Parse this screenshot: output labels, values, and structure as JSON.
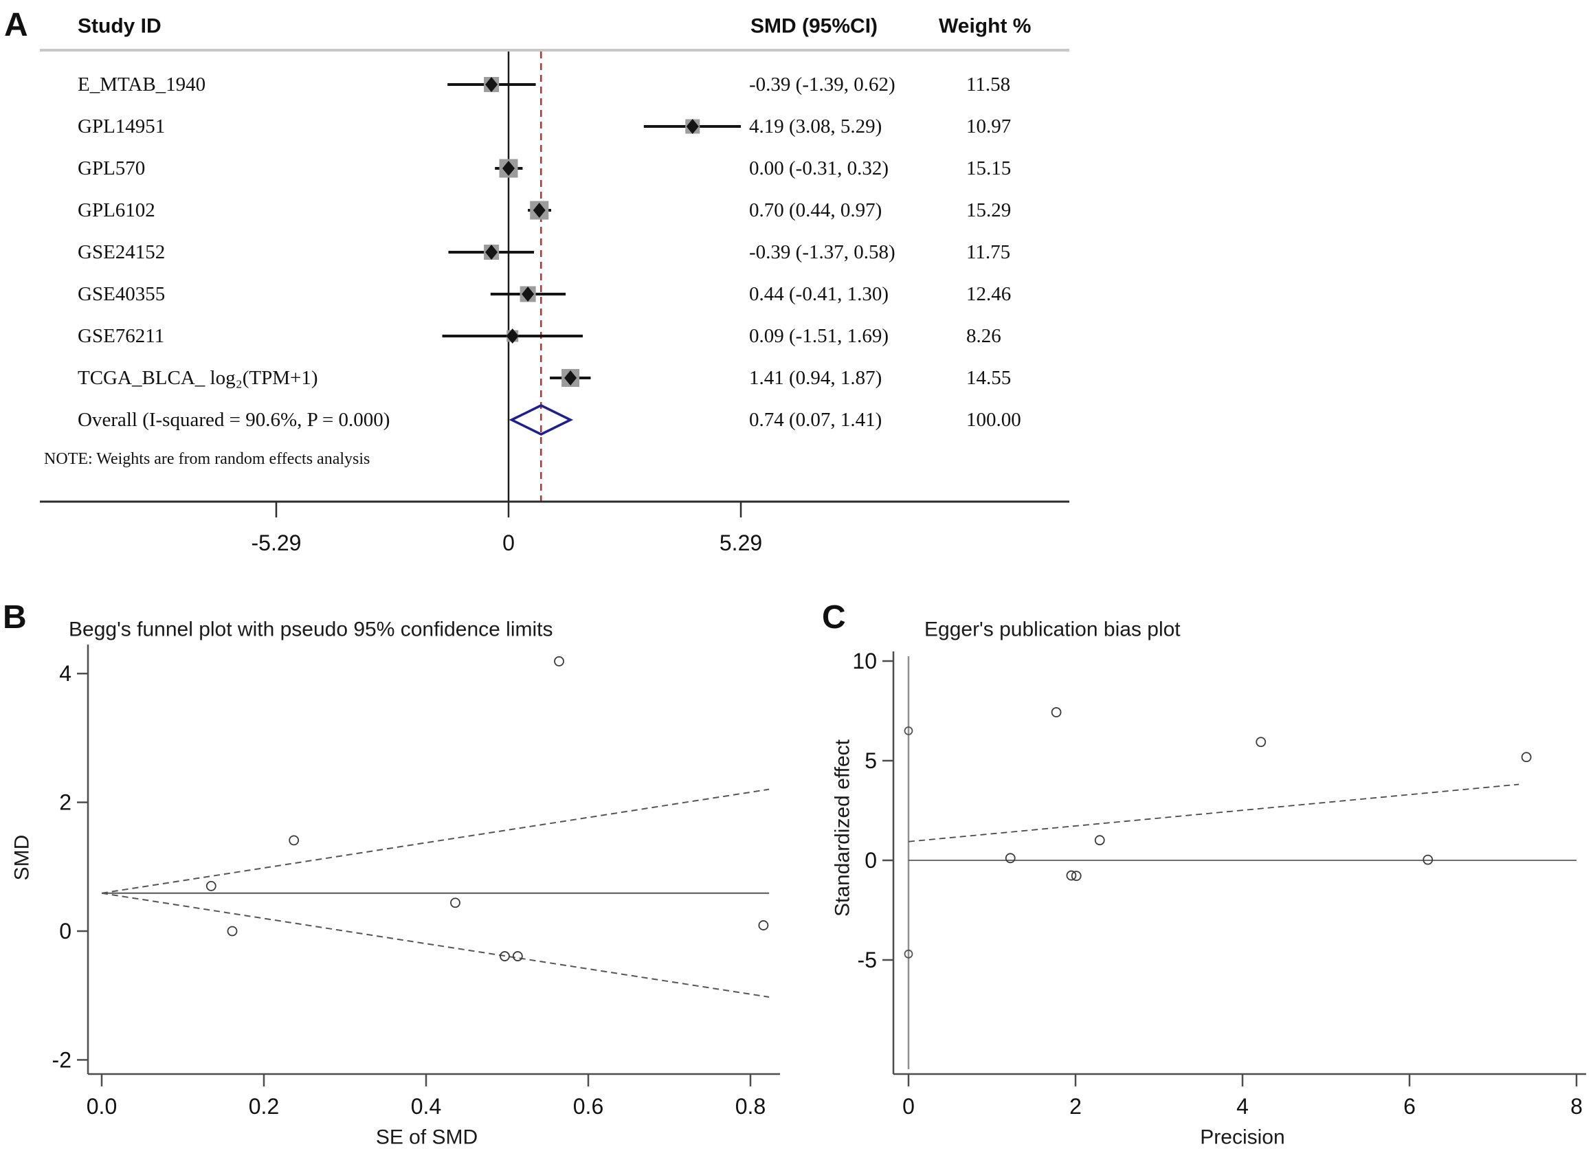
{
  "figure_title": "Meta-analysis forest plot with Begg's funnel plot and Egger's publication bias plot",
  "chart_data": [
    {
      "type": "forest",
      "panel_letter": "A",
      "header": {
        "study": "Study ID",
        "smd": "SMD (95%CI)",
        "weight": "Weight %"
      },
      "studies": [
        {
          "id": "E_MTAB_1940",
          "smd": -0.39,
          "lo": -1.39,
          "hi": 0.62,
          "ci_text": "-0.39 (-1.39, 0.62)",
          "weight": 11.58,
          "weight_text": "11.58"
        },
        {
          "id": "GPL14951",
          "smd": 4.19,
          "lo": 3.08,
          "hi": 5.29,
          "ci_text": "4.19 (3.08, 5.29)",
          "weight": 10.97,
          "weight_text": "10.97"
        },
        {
          "id": "GPL570",
          "smd": 0.0,
          "lo": -0.31,
          "hi": 0.32,
          "ci_text": "0.00 (-0.31, 0.32)",
          "weight": 15.15,
          "weight_text": "15.15"
        },
        {
          "id": "GPL6102",
          "smd": 0.7,
          "lo": 0.44,
          "hi": 0.97,
          "ci_text": "0.70 (0.44, 0.97)",
          "weight": 15.29,
          "weight_text": "15.29"
        },
        {
          "id": "GSE24152",
          "smd": -0.39,
          "lo": -1.37,
          "hi": 0.58,
          "ci_text": "-0.39 (-1.37, 0.58)",
          "weight": 11.75,
          "weight_text": "11.75"
        },
        {
          "id": "GSE40355",
          "smd": 0.44,
          "lo": -0.41,
          "hi": 1.3,
          "ci_text": "0.44 (-0.41, 1.30)",
          "weight": 12.46,
          "weight_text": "12.46"
        },
        {
          "id": "GSE76211",
          "smd": 0.09,
          "lo": -1.51,
          "hi": 1.69,
          "ci_text": "0.09 (-1.51, 1.69)",
          "weight": 8.26,
          "weight_text": "8.26"
        },
        {
          "id": "TCGA_BLCA_ log₂(TPM+1)",
          "smd": 1.41,
          "lo": 0.94,
          "hi": 1.87,
          "ci_text": "1.41 (0.94, 1.87)",
          "weight": 14.55,
          "weight_text": "14.55"
        }
      ],
      "overall": {
        "id": "Overall  (I-squared = 90.6%, P = 0.000)",
        "smd": 0.74,
        "lo": 0.07,
        "hi": 1.41,
        "ci_text": "0.74 (0.07, 1.41)",
        "weight_text": "100.00"
      },
      "note": "NOTE: Weights are from random effects analysis",
      "x_ticks": [
        -5.29,
        0,
        5.29
      ],
      "x_tick_labels": [
        "-5.29",
        "0",
        "5.29"
      ],
      "null_line_x": 0,
      "pooled_line_x": 0.74,
      "colors": {
        "overall_diamond": "#20208c",
        "pooled_dashed_line": "#9c3c3c",
        "weight_square": "#9c9c9c",
        "marker": "#141414"
      }
    },
    {
      "type": "scatter",
      "panel_letter": "B",
      "title": "Begg's funnel plot with pseudo 95% confidence limits",
      "xlabel": "SE of SMD",
      "ylabel": "SMD",
      "x_ticks": [
        0.0,
        0.2,
        0.4,
        0.6,
        0.8
      ],
      "x_tick_labels": [
        "0.0",
        "0.2",
        "0.4",
        "0.6",
        "0.8"
      ],
      "y_ticks": [
        4,
        2,
        0,
        -2
      ],
      "y_tick_labels": [
        "4",
        "2",
        "0",
        "-2"
      ],
      "xlim": [
        0,
        0.84
      ],
      "ylim": [
        -2.3,
        4.6
      ],
      "center_smd": 0.589,
      "funnel_limit_multiplier": 1.96,
      "funnel_se_max": 0.823,
      "points": [
        {
          "id": "GPL6102",
          "se": 0.135,
          "smd": 0.7
        },
        {
          "id": "GPL570",
          "se": 0.161,
          "smd": 0.0
        },
        {
          "id": "TCGA_BLCA_ log₂(TPM+1)",
          "se": 0.237,
          "smd": 1.41
        },
        {
          "id": "GSE40355",
          "se": 0.436,
          "smd": 0.44
        },
        {
          "id": "GSE24152",
          "se": 0.497,
          "smd": -0.39
        },
        {
          "id": "E_MTAB_1940",
          "se": 0.513,
          "smd": -0.39
        },
        {
          "id": "GPL14951",
          "se": 0.564,
          "smd": 4.19
        },
        {
          "id": "GSE76211",
          "se": 0.816,
          "smd": 0.09
        }
      ]
    },
    {
      "type": "scatter",
      "panel_letter": "C",
      "title": "Egger's publication bias plot",
      "xlabel": "Precision",
      "ylabel": "Standardized effect",
      "x_ticks": [
        0,
        2,
        4,
        6,
        8
      ],
      "x_tick_labels": [
        "0",
        "2",
        "4",
        "6",
        "8"
      ],
      "y_ticks": [
        10,
        5,
        0,
        -5
      ],
      "y_tick_labels": [
        "10",
        "5",
        "0",
        "-5"
      ],
      "xlim": [
        0,
        8
      ],
      "ylim": [
        -10.5,
        10.5
      ],
      "zero_line_y": 0,
      "regression": {
        "intercept": 0.94,
        "slope": 0.393,
        "x_end": 7.31
      },
      "intercept_ci": {
        "lo": -4.7,
        "hi": 6.5
      },
      "points": [
        {
          "id": "GSE76211",
          "precision": 1.22,
          "std_effect": 0.11
        },
        {
          "id": "GPL14951",
          "precision": 1.77,
          "std_effect": 7.43
        },
        {
          "id": "E_MTAB_1940",
          "precision": 1.95,
          "std_effect": -0.76
        },
        {
          "id": "GSE24152",
          "precision": 2.01,
          "std_effect": -0.78
        },
        {
          "id": "GSE40355",
          "precision": 2.29,
          "std_effect": 1.01
        },
        {
          "id": "TCGA_BLCA_ log₂(TPM+1)",
          "precision": 4.22,
          "std_effect": 5.94
        },
        {
          "id": "GPL570",
          "precision": 6.22,
          "std_effect": 0.03
        },
        {
          "id": "GPL6102",
          "precision": 7.4,
          "std_effect": 5.18
        }
      ]
    }
  ]
}
